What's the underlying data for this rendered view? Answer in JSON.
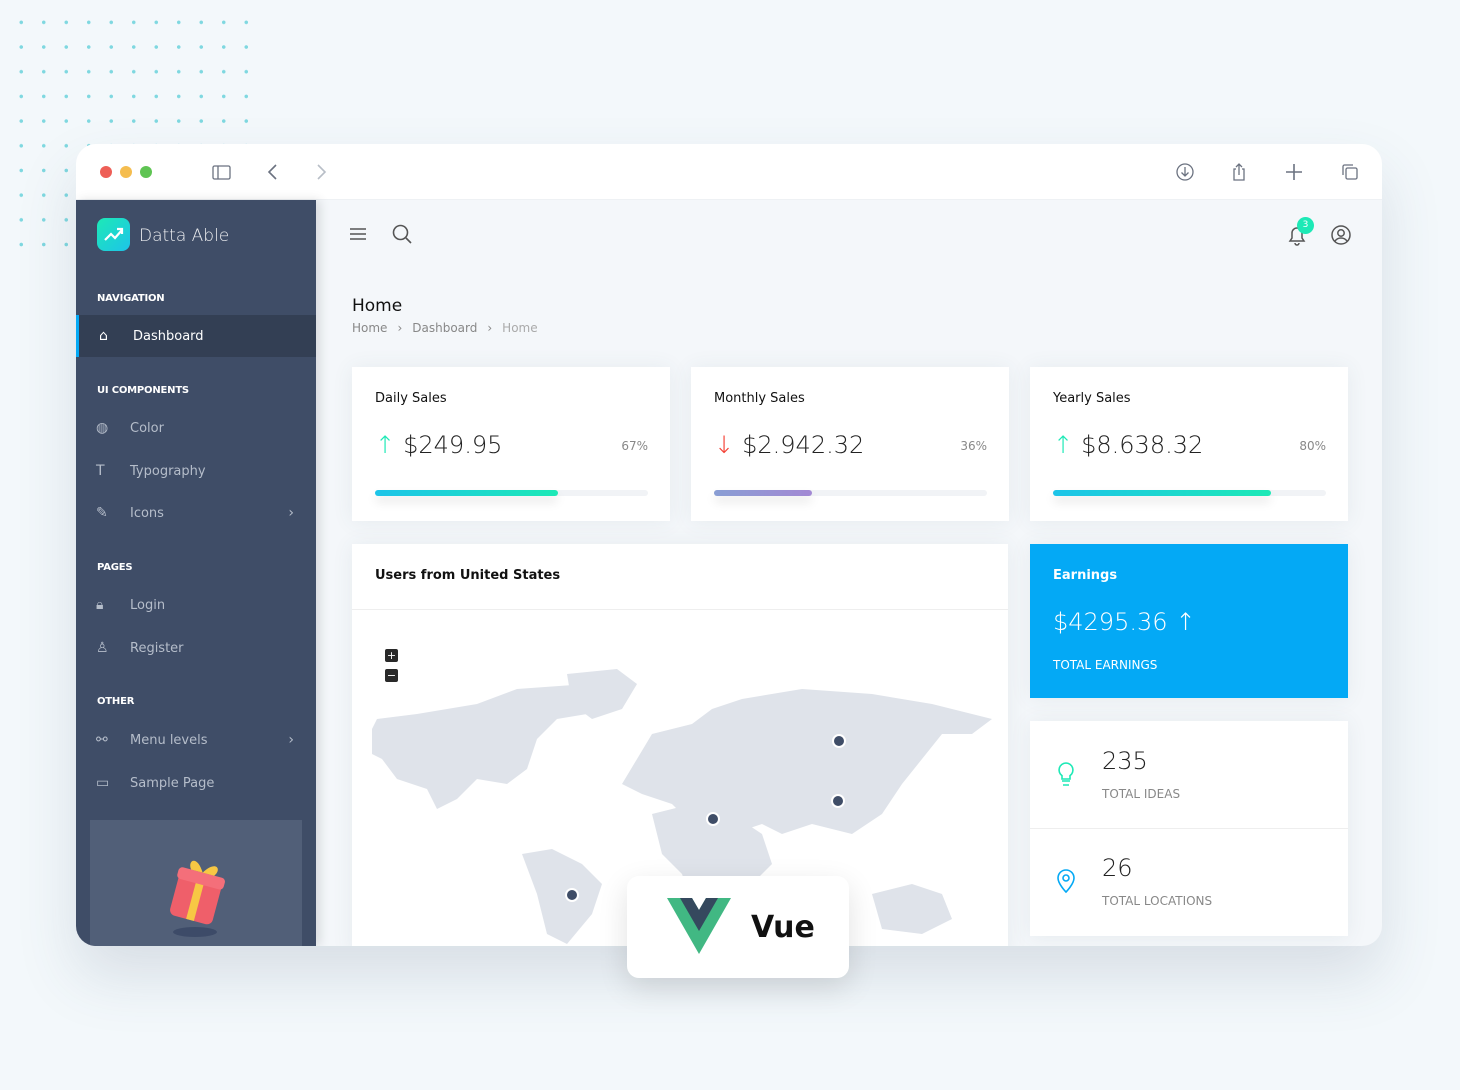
{
  "app": {
    "name": "Datta Able"
  },
  "colors": {
    "sidebar": "#3f4d67",
    "accent": "#04a9f5",
    "green": "#1de9b6",
    "red": "#f44236",
    "purple": "#a389d4"
  },
  "browser": {
    "icons": [
      "sidebar-icon",
      "back-icon",
      "forward-icon",
      "download-icon",
      "share-icon",
      "new-tab-icon",
      "tabs-icon"
    ]
  },
  "sidebar": {
    "sections": [
      {
        "caption": "NAVIGATION",
        "items": [
          {
            "label": "Dashboard",
            "icon": "home-icon",
            "active": true
          }
        ]
      },
      {
        "caption": "UI COMPONENTS",
        "items": [
          {
            "label": "Color",
            "icon": "palette-icon"
          },
          {
            "label": "Typography",
            "icon": "type-icon"
          },
          {
            "label": "Icons",
            "icon": "feather-icon",
            "submenu": true
          }
        ]
      },
      {
        "caption": "PAGES",
        "items": [
          {
            "label": "Login",
            "icon": "lock-icon"
          },
          {
            "label": "Register",
            "icon": "user-plus-icon"
          }
        ]
      },
      {
        "caption": "OTHER",
        "items": [
          {
            "label": "Menu levels",
            "icon": "share-nodes-icon",
            "submenu": true
          },
          {
            "label": "Sample Page",
            "icon": "monitor-icon"
          }
        ]
      }
    ]
  },
  "header": {
    "notification_count": "3"
  },
  "page": {
    "title": "Home",
    "breadcrumb": [
      "Home",
      "Dashboard",
      "Home"
    ]
  },
  "stats": [
    {
      "title": "Daily Sales",
      "value": "$249.95",
      "percent": "67%",
      "progress": 67,
      "trend": "up"
    },
    {
      "title": "Monthly Sales",
      "value": "$2.942.32",
      "percent": "36%",
      "progress": 36,
      "trend": "down"
    },
    {
      "title": "Yearly Sales",
      "value": "$8.638.32",
      "percent": "80%",
      "progress": 80,
      "trend": "up"
    }
  ],
  "map": {
    "title": "Users from United States",
    "zoom_in": "+",
    "zoom_out": "−"
  },
  "earnings": {
    "title": "Earnings",
    "value": "$4295.36",
    "label": "TOTAL EARNINGS"
  },
  "totals": [
    {
      "value": "235",
      "label": "TOTAL IDEAS",
      "icon": "lightbulb-icon"
    },
    {
      "value": "26",
      "label": "TOTAL LOCATIONS",
      "icon": "map-pin-icon"
    }
  ],
  "badge": {
    "text": "Vue"
  }
}
